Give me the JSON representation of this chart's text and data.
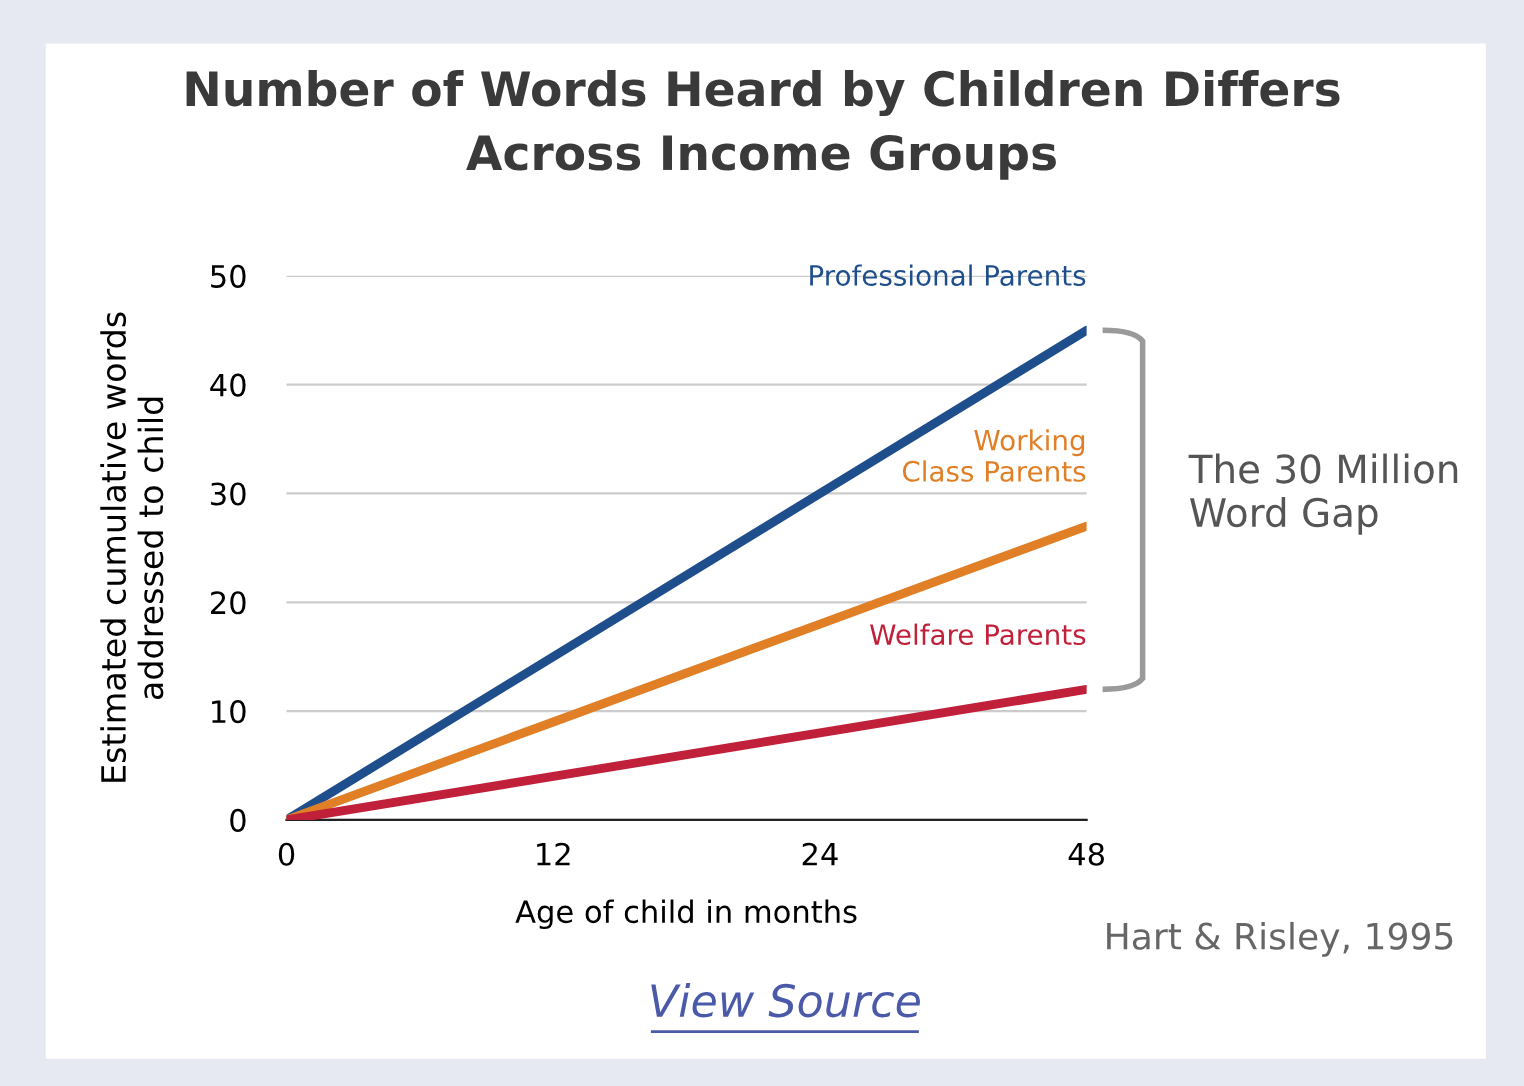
{
  "chart_data": {
    "type": "line",
    "title": "Number of Words Heard by Children Differs\nAcross Income Groups",
    "xlabel": "Age of child in months",
    "ylabel": "Estimated cumulative words\naddressed to child",
    "categories": [
      "0",
      "12",
      "24",
      "48"
    ],
    "series": [
      {
        "name": "Professional Parents",
        "color": "#1f4e8c",
        "values": [
          0,
          15,
          30,
          45
        ]
      },
      {
        "name": "Working\nClass Parents",
        "color": "#e07f26",
        "values": [
          0,
          9,
          18,
          27
        ]
      },
      {
        "name": "Welfare Parents",
        "color": "#c0203a",
        "values": [
          0,
          4,
          8,
          12
        ]
      }
    ],
    "ylim": [
      0,
      50
    ],
    "yticks": [
      0,
      10,
      20,
      30,
      40,
      50
    ],
    "grid": "y",
    "legend": false,
    "marker": "none",
    "line_style": "solid",
    "annotations": [
      "The 30 Million\nWord Gap",
      "Hart & Risley, 1995",
      "View Source"
    ]
  }
}
